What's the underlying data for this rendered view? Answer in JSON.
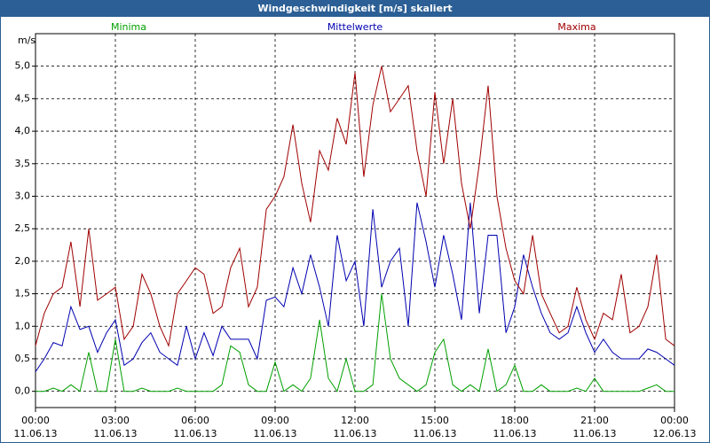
{
  "chart_data": {
    "type": "line",
    "title": "Windgeschwindigkeit [m/s] skaliert",
    "ylabel": "m/s",
    "x": [
      0,
      0.33,
      0.67,
      1,
      1.33,
      1.67,
      2,
      2.33,
      2.67,
      3,
      3.33,
      3.67,
      4,
      4.33,
      4.67,
      5,
      5.33,
      5.67,
      6,
      6.33,
      6.67,
      7,
      7.33,
      7.67,
      8,
      8.33,
      8.67,
      9,
      9.33,
      9.67,
      10,
      10.33,
      10.67,
      11,
      11.33,
      11.67,
      12,
      12.33,
      12.67,
      13,
      13.33,
      13.67,
      14,
      14.33,
      14.67,
      15,
      15.33,
      15.67,
      16,
      16.33,
      16.67,
      17,
      17.33,
      17.67,
      18,
      18.33,
      18.67,
      19,
      19.33,
      19.67,
      20,
      20.33,
      20.67,
      21,
      21.33,
      21.67,
      22,
      22.33,
      22.67,
      23,
      23.33,
      23.67,
      24
    ],
    "series": [
      {
        "name": "Minima",
        "color": "#00a000",
        "values": [
          0,
          0,
          0.05,
          0,
          0.1,
          0,
          0.6,
          0,
          0,
          0.8,
          0,
          0,
          0.05,
          0,
          0,
          0,
          0.05,
          0,
          0,
          0,
          0,
          0.1,
          0.7,
          0.6,
          0.1,
          0,
          0,
          0.45,
          0,
          0.1,
          0,
          0.2,
          1.1,
          0.2,
          0,
          0.5,
          0,
          0,
          0.1,
          1.5,
          0.5,
          0.2,
          0.1,
          0,
          0.1,
          0.6,
          0.8,
          0.1,
          0,
          0.1,
          0,
          0.65,
          0,
          0.1,
          0.4,
          0,
          0,
          0.1,
          0,
          0,
          0,
          0.05,
          0,
          0.2,
          0,
          0,
          0,
          0,
          0,
          0.05,
          0.1,
          0,
          0
        ]
      },
      {
        "name": "Mittelwerte",
        "color": "#0000b0",
        "values": [
          0.3,
          0.5,
          0.75,
          0.7,
          1.3,
          0.95,
          1.0,
          0.6,
          0.9,
          1.1,
          0.4,
          0.5,
          0.75,
          0.9,
          0.6,
          0.5,
          0.4,
          1.0,
          0.5,
          0.9,
          0.55,
          1.0,
          0.8,
          0.8,
          0.8,
          0.5,
          1.4,
          1.45,
          1.3,
          1.9,
          1.5,
          2.1,
          1.6,
          1.0,
          2.4,
          1.7,
          2.0,
          1.0,
          2.8,
          1.6,
          2.0,
          2.2,
          1.0,
          2.9,
          2.3,
          1.6,
          2.4,
          1.8,
          1.1,
          2.9,
          1.2,
          2.4,
          2.4,
          0.9,
          1.3,
          2.1,
          1.6,
          1.2,
          0.9,
          0.8,
          0.9,
          1.3,
          0.9,
          0.6,
          0.8,
          0.6,
          0.5,
          0.5,
          0.5,
          0.65,
          0.6,
          0.5,
          0.4
        ]
      },
      {
        "name": "Maxima",
        "color": "#a00000",
        "values": [
          0.7,
          1.2,
          1.5,
          1.6,
          2.3,
          1.3,
          2.5,
          1.4,
          1.5,
          1.6,
          0.8,
          1.0,
          1.8,
          1.5,
          1.0,
          0.7,
          1.5,
          1.7,
          1.9,
          1.8,
          1.2,
          1.3,
          1.9,
          2.2,
          1.3,
          1.6,
          2.8,
          3.0,
          3.3,
          4.1,
          3.2,
          2.6,
          3.7,
          3.4,
          4.2,
          3.8,
          4.9,
          3.3,
          4.4,
          5.0,
          4.3,
          4.5,
          4.7,
          3.7,
          3.0,
          4.6,
          3.5,
          4.5,
          3.2,
          2.5,
          3.5,
          4.7,
          3.0,
          2.2,
          1.7,
          1.5,
          2.4,
          1.5,
          1.2,
          0.9,
          1.0,
          1.6,
          1.1,
          0.8,
          1.2,
          1.1,
          1.8,
          0.9,
          1.0,
          1.3,
          2.1,
          0.8,
          0.7
        ]
      }
    ],
    "xlim": [
      0,
      24
    ],
    "xticks": [
      {
        "value": 0,
        "label": "00:00"
      },
      {
        "value": 3,
        "label": "03:00"
      },
      {
        "value": 6,
        "label": "06:00"
      },
      {
        "value": 9,
        "label": "09:00"
      },
      {
        "value": 12,
        "label": "12:00"
      },
      {
        "value": 15,
        "label": "15:00"
      },
      {
        "value": 18,
        "label": "18:00"
      },
      {
        "value": 21,
        "label": "21:00"
      },
      {
        "value": 24,
        "label": "00:00"
      }
    ],
    "xtick_dates": [
      "11.06.13",
      "11.06.13",
      "11.06.13",
      "11.06.13",
      "11.06.13",
      "11.06.13",
      "11.06.13",
      "11.06.13",
      "12.06.13"
    ],
    "ylim": [
      -0.25,
      5.5
    ],
    "yticks": [
      {
        "value": 0,
        "label": "0,0"
      },
      {
        "value": 0.5,
        "label": "0,5"
      },
      {
        "value": 1,
        "label": "1,0"
      },
      {
        "value": 1.5,
        "label": "1,5"
      },
      {
        "value": 2,
        "label": "2,0"
      },
      {
        "value": 2.5,
        "label": "2,5"
      },
      {
        "value": 3,
        "label": "3,0"
      },
      {
        "value": 3.5,
        "label": "3,5"
      },
      {
        "value": 4,
        "label": "4,0"
      },
      {
        "value": 4.5,
        "label": "4,5"
      },
      {
        "value": 5,
        "label": "5,0"
      }
    ],
    "grid": true
  }
}
